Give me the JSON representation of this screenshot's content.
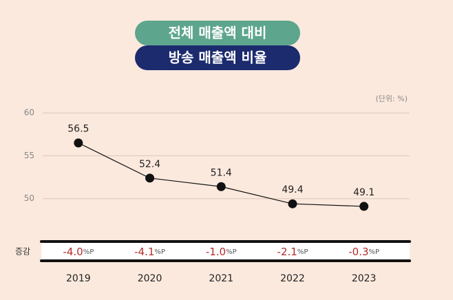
{
  "chart_data": {
    "type": "line",
    "title": "전체 매출액 대비",
    "subtitle": "방송 매출액 비율",
    "unit_note": "(단위: %)",
    "categories": [
      "2019",
      "2020",
      "2021",
      "2022",
      "2023"
    ],
    "values": [
      56.5,
      52.4,
      51.4,
      49.4,
      49.1
    ],
    "color": "#111111",
    "ylim": [
      45,
      62.5
    ],
    "yticks": [
      50,
      55,
      60
    ],
    "grid": true,
    "changes": {
      "label": "증감",
      "values": [
        -4.0,
        -4.1,
        -1.0,
        -2.1,
        -0.3
      ],
      "value_labels": [
        "-4.0%P",
        "-4.1%P",
        "-1.0%P",
        "-2.1%P",
        "-0.3%P"
      ]
    }
  }
}
